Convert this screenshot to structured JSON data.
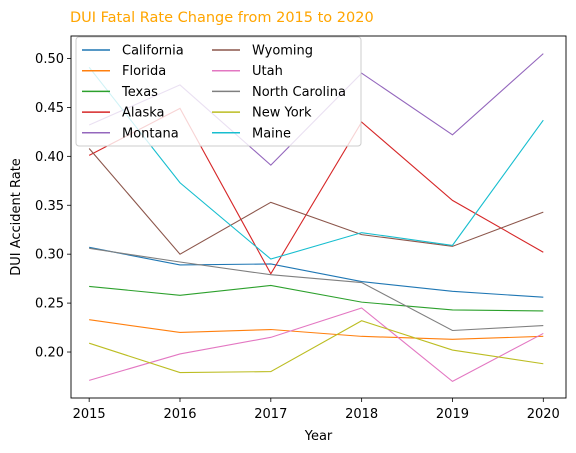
{
  "chart_data": {
    "type": "line",
    "title": "DUI Fatal Rate Change from 2015 to 2020",
    "title_color": "#FFA500",
    "xlabel": "Year",
    "ylabel": "DUI Accident Rate",
    "x": [
      2015,
      2016,
      2017,
      2018,
      2019,
      2020
    ],
    "xlim": [
      2014.8,
      2020.25
    ],
    "ylim": [
      0.153,
      0.523
    ],
    "yticks": [
      "0.20",
      "0.25",
      "0.30",
      "0.35",
      "0.40",
      "0.45",
      "0.50"
    ],
    "legend_position": "top-left",
    "legend_columns": 2,
    "series": [
      {
        "name": "California",
        "color": "#1f77b4",
        "values": [
          0.307,
          0.289,
          0.29,
          0.272,
          0.262,
          0.256
        ]
      },
      {
        "name": "Florida",
        "color": "#ff7f0e",
        "values": [
          0.233,
          0.22,
          0.223,
          0.216,
          0.213,
          0.216
        ]
      },
      {
        "name": "Texas",
        "color": "#2ca02c",
        "values": [
          0.267,
          0.258,
          0.268,
          0.251,
          0.243,
          0.242
        ]
      },
      {
        "name": "Alaska",
        "color": "#d62728",
        "values": [
          0.401,
          0.449,
          0.28,
          0.435,
          0.355,
          0.302
        ]
      },
      {
        "name": "Montana",
        "color": "#9467bd",
        "values": [
          0.432,
          0.473,
          0.391,
          0.485,
          0.422,
          0.505
        ]
      },
      {
        "name": "Wyoming",
        "color": "#8c564b",
        "values": [
          0.408,
          0.3,
          0.353,
          0.32,
          0.308,
          0.343
        ]
      },
      {
        "name": "Utah",
        "color": "#e377c2",
        "values": [
          0.171,
          0.198,
          0.215,
          0.245,
          0.17,
          0.219
        ]
      },
      {
        "name": "North Carolina",
        "color": "#7f7f7f",
        "values": [
          0.306,
          0.292,
          0.279,
          0.271,
          0.222,
          0.227
        ]
      },
      {
        "name": "New York",
        "color": "#bcbd22",
        "values": [
          0.209,
          0.179,
          0.18,
          0.232,
          0.202,
          0.188
        ]
      },
      {
        "name": "Maine",
        "color": "#17becf",
        "values": [
          0.491,
          0.373,
          0.295,
          0.322,
          0.309,
          0.437
        ]
      }
    ]
  }
}
